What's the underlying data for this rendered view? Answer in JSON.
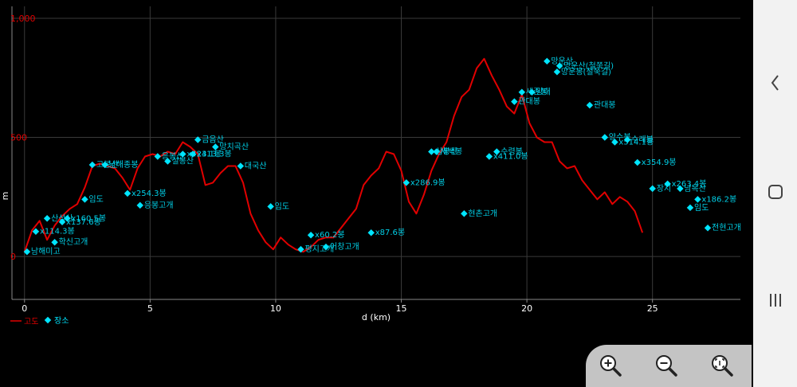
{
  "chart_data": {
    "type": "line",
    "xlabel": "d (km)",
    "ylabel": "m",
    "xlim": [
      -0.5,
      28.5
    ],
    "ylim": [
      -180,
      1050
    ],
    "x_ticks": [
      0,
      5,
      10,
      15,
      20,
      25
    ],
    "y_ticks": [
      0,
      500,
      1000
    ],
    "y_tick_labels": [
      "0",
      "500",
      "1,000"
    ],
    "grid": true,
    "legend": "bottom-left",
    "series": [
      {
        "name": "고도",
        "color": "#e10000",
        "x": [
          0.0,
          0.3,
          0.6,
          0.9,
          1.2,
          1.5,
          1.8,
          2.1,
          2.4,
          2.7,
          3.0,
          3.3,
          3.6,
          3.9,
          4.2,
          4.5,
          4.8,
          5.1,
          5.4,
          5.7,
          6.0,
          6.3,
          6.6,
          6.9,
          7.2,
          7.5,
          7.8,
          8.1,
          8.4,
          8.7,
          9.0,
          9.3,
          9.6,
          9.9,
          10.2,
          10.5,
          10.8,
          11.1,
          11.4,
          11.7,
          12.0,
          12.3,
          12.6,
          12.9,
          13.2,
          13.5,
          13.8,
          14.1,
          14.4,
          14.7,
          15.0,
          15.3,
          15.6,
          15.9,
          16.2,
          16.5,
          16.8,
          17.1,
          17.4,
          17.7,
          18.0,
          18.3,
          18.6,
          18.9,
          19.2,
          19.5,
          19.8,
          20.1,
          20.4,
          20.7,
          21.0,
          21.3,
          21.6,
          21.9,
          22.2,
          22.5,
          22.8,
          23.1,
          23.4,
          23.7,
          24.0,
          24.3,
          24.6
        ],
        "y": [
          20,
          110,
          150,
          70,
          130,
          170,
          200,
          220,
          290,
          380,
          390,
          380,
          370,
          330,
          280,
          370,
          420,
          430,
          420,
          440,
          430,
          480,
          460,
          430,
          300,
          310,
          350,
          380,
          380,
          310,
          180,
          110,
          60,
          30,
          80,
          50,
          30,
          20,
          40,
          70,
          80,
          80,
          120,
          160,
          200,
          300,
          340,
          370,
          440,
          430,
          360,
          230,
          180,
          260,
          360,
          430,
          480,
          590,
          670,
          700,
          790,
          830,
          760,
          700,
          630,
          600,
          680,
          560,
          500,
          480,
          480,
          400,
          370,
          380,
          320,
          280,
          240,
          270,
          220,
          250,
          230,
          190,
          100
        ]
      },
      {
        "name": "장소",
        "color": "#00e5ff",
        "type": "scatter",
        "points": [
          {
            "x": 0.1,
            "y": 20,
            "label": "남해미고"
          },
          {
            "x": 0.45,
            "y": 105,
            "label": "x114.3봉"
          },
          {
            "x": 0.9,
            "y": 160,
            "label": "산성산"
          },
          {
            "x": 1.2,
            "y": 60,
            "label": "학신고개"
          },
          {
            "x": 1.7,
            "y": 160,
            "label": "x160.5봉"
          },
          {
            "x": 1.5,
            "y": 145,
            "label": "x137.6봉"
          },
          {
            "x": 2.4,
            "y": 240,
            "label": "임도"
          },
          {
            "x": 2.7,
            "y": 385,
            "label": "고봉산"
          },
          {
            "x": 3.2,
            "y": 385,
            "label": "남해종봉"
          },
          {
            "x": 4.1,
            "y": 265,
            "label": "x254.3봉"
          },
          {
            "x": 4.6,
            "y": 215,
            "label": "응봉고개"
          },
          {
            "x": 5.3,
            "y": 420,
            "label": "응봉산"
          },
          {
            "x": 5.7,
            "y": 400,
            "label": "설봉산"
          },
          {
            "x": 6.3,
            "y": 430,
            "label": "x423.1봉"
          },
          {
            "x": 6.7,
            "y": 430,
            "label": "x413.3봉"
          },
          {
            "x": 6.9,
            "y": 490,
            "label": "금음산"
          },
          {
            "x": 7.6,
            "y": 460,
            "label": "망치곡산"
          },
          {
            "x": 8.6,
            "y": 380,
            "label": "대국산"
          },
          {
            "x": 9.8,
            "y": 210,
            "label": "임도"
          },
          {
            "x": 11.0,
            "y": 30,
            "label": "평지고개"
          },
          {
            "x": 11.4,
            "y": 90,
            "label": "x60.2봉"
          },
          {
            "x": 12.0,
            "y": 40,
            "label": "어창고개"
          },
          {
            "x": 13.8,
            "y": 100,
            "label": "x87.6봉"
          },
          {
            "x": 15.2,
            "y": 310,
            "label": "x286.9봉"
          },
          {
            "x": 16.2,
            "y": 440,
            "label": "삼봉산"
          },
          {
            "x": 16.4,
            "y": 440,
            "label": "세백봉"
          },
          {
            "x": 17.5,
            "y": 180,
            "label": "현촌고개"
          },
          {
            "x": 18.5,
            "y": 420,
            "label": "x411.0봉"
          },
          {
            "x": 18.8,
            "y": 440,
            "label": "수령봉"
          },
          {
            "x": 19.5,
            "y": 650,
            "label": "관대봉"
          },
          {
            "x": 19.8,
            "y": 690,
            "label": "세존봉"
          },
          {
            "x": 20.2,
            "y": 690,
            "label": "망대"
          },
          {
            "x": 20.8,
            "y": 820,
            "label": "망운산"
          },
          {
            "x": 21.3,
            "y": 800,
            "label": "망운산(철쭉길)"
          },
          {
            "x": 21.2,
            "y": 775,
            "label": "망운봉(철쭉길)"
          },
          {
            "x": 22.5,
            "y": 635,
            "label": "관대봉"
          },
          {
            "x": 23.1,
            "y": 500,
            "label": "양수봉"
          },
          {
            "x": 23.5,
            "y": 480,
            "label": "x514.1봉"
          },
          {
            "x": 24.0,
            "y": 490,
            "label": "수래봉"
          },
          {
            "x": 24.4,
            "y": 395,
            "label": "x354.9봉"
          },
          {
            "x": 25.0,
            "y": 285,
            "label": "장지"
          },
          {
            "x": 25.6,
            "y": 305,
            "label": "x263.4봉"
          },
          {
            "x": 26.1,
            "y": 285,
            "label": "남목산"
          },
          {
            "x": 26.8,
            "y": 240,
            "label": "x186.2봉"
          },
          {
            "x": 26.5,
            "y": 205,
            "label": "임도"
          },
          {
            "x": 27.2,
            "y": 120,
            "label": "전현고개"
          }
        ]
      }
    ]
  },
  "controls": {
    "zoom_in": "zoom-in",
    "zoom_out": "zoom-out",
    "zoom_fit": "zoom-fit"
  }
}
